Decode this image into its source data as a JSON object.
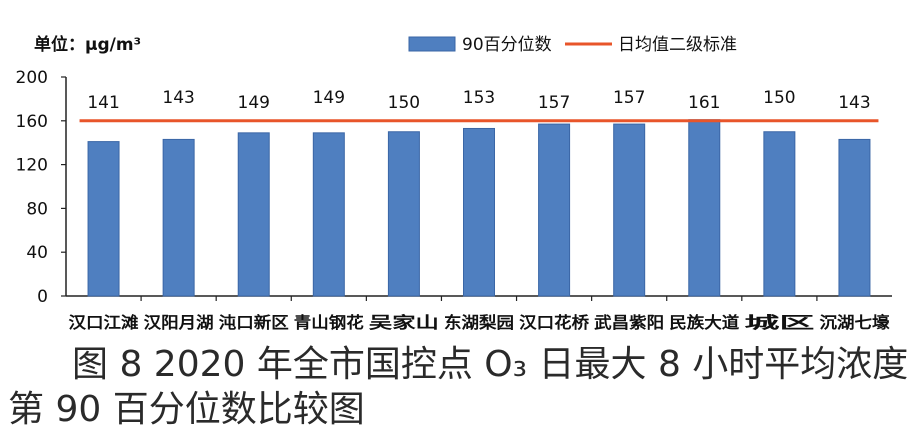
{
  "chart_data": {
    "type": "bar",
    "unit_label": "单位：μg/m³",
    "categories": [
      "汉口江滩",
      "汉阳月湖",
      "沌口新区",
      "青山钢花",
      "吴家山",
      "东湖梨园",
      "汉口花桥",
      "武昌紫阳",
      "民族大道",
      "城区",
      "沉湖七壕"
    ],
    "series": [
      {
        "name": "90百分位数",
        "values": [
          141,
          143,
          149,
          149,
          150,
          153,
          157,
          157,
          161,
          150,
          143
        ],
        "color": "#4f7fc0"
      }
    ],
    "reference_line": {
      "name": "日均值二级标准",
      "value": 160,
      "color": "#e8552a"
    },
    "data_labels": [
      "141",
      "143",
      "149",
      "149",
      "150",
      "153",
      "157",
      "157",
      "161",
      "150",
      "143"
    ],
    "y_ticks": [
      "0",
      "40",
      "80",
      "120",
      "160",
      "200"
    ],
    "ylim": [
      0,
      200
    ],
    "legend_position": "top-right"
  },
  "caption": {
    "line1": "图 8  2020 年全市国控点 O₃ 日最大 8 小时平均浓度",
    "line2": "第 90 百分位数比较图"
  }
}
